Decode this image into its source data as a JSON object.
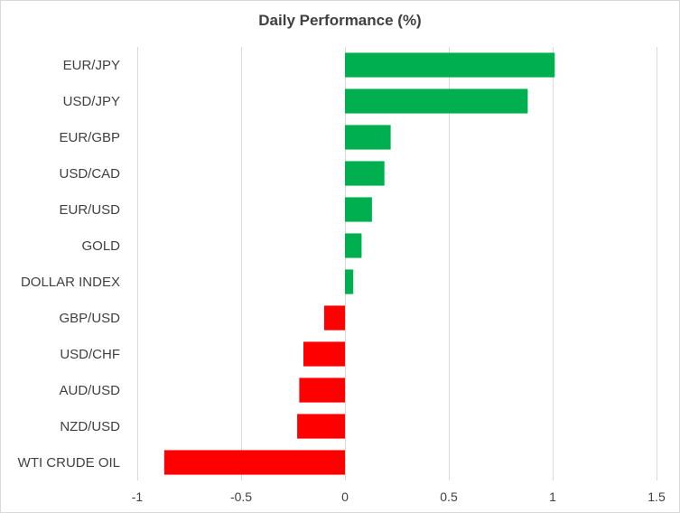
{
  "chart_data": {
    "type": "bar",
    "orientation": "horizontal",
    "title": "Daily Performance (%)",
    "categories": [
      "EUR/JPY",
      "USD/JPY",
      "EUR/GBP",
      "USD/CAD",
      "EUR/USD",
      "GOLD",
      "DOLLAR INDEX",
      "GBP/USD",
      "USD/CHF",
      "AUD/USD",
      "NZD/USD",
      "WTI CRUDE OIL"
    ],
    "values": [
      1.01,
      0.88,
      0.22,
      0.19,
      0.13,
      0.08,
      0.04,
      -0.1,
      -0.2,
      -0.22,
      -0.23,
      -0.87
    ],
    "xlim": [
      -1,
      1.5
    ],
    "xticks": [
      -1,
      -0.5,
      0,
      0.5,
      1,
      1.5
    ],
    "xtick_labels": [
      "-1",
      "-0.5",
      "0",
      "0.5",
      "1",
      "1.5"
    ],
    "grid": true,
    "colors": {
      "positive": "#00b050",
      "negative": "#ff0000",
      "grid": "#d9d9d9",
      "text": "#404040"
    }
  }
}
